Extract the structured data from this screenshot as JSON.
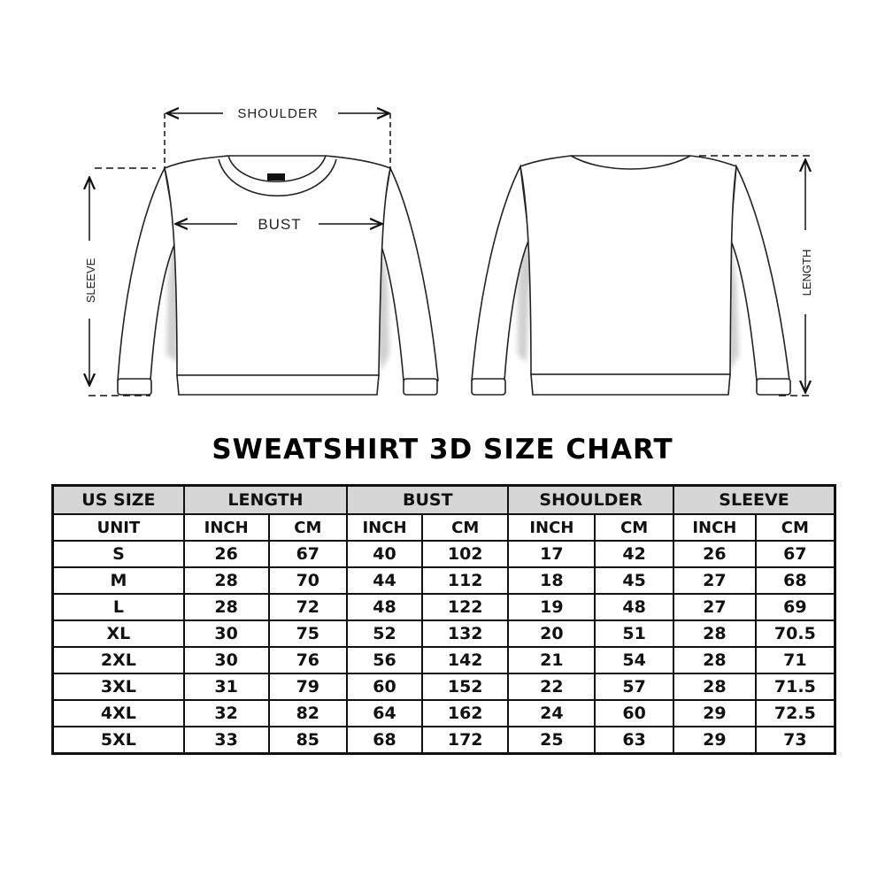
{
  "diagram": {
    "labels": {
      "shoulder": "SHOULDER",
      "bust": "BUST",
      "sleeve": "SLEEVE",
      "length": "LENGTH"
    },
    "views": [
      "front",
      "back"
    ]
  },
  "title": "SWEATSHIRT 3D SIZE CHART",
  "table": {
    "groups": [
      "US SIZE",
      "LENGTH",
      "BUST",
      "SHOULDER",
      "SLEEVE"
    ],
    "unit_label": "UNIT",
    "units": [
      "INCH",
      "CM",
      "INCH",
      "CM",
      "INCH",
      "CM",
      "INCH",
      "CM"
    ],
    "rows": [
      {
        "size": "S",
        "values": [
          "26",
          "67",
          "40",
          "102",
          "17",
          "42",
          "26",
          "67"
        ]
      },
      {
        "size": "M",
        "values": [
          "28",
          "70",
          "44",
          "112",
          "18",
          "45",
          "27",
          "68"
        ]
      },
      {
        "size": "L",
        "values": [
          "28",
          "72",
          "48",
          "122",
          "19",
          "48",
          "27",
          "69"
        ]
      },
      {
        "size": "XL",
        "values": [
          "30",
          "75",
          "52",
          "132",
          "20",
          "51",
          "28",
          "70.5"
        ]
      },
      {
        "size": "2XL",
        "values": [
          "30",
          "76",
          "56",
          "142",
          "21",
          "54",
          "28",
          "71"
        ]
      },
      {
        "size": "3XL",
        "values": [
          "31",
          "79",
          "60",
          "152",
          "22",
          "57",
          "28",
          "71.5"
        ]
      },
      {
        "size": "4XL",
        "values": [
          "32",
          "82",
          "64",
          "162",
          "24",
          "60",
          "29",
          "72.5"
        ]
      },
      {
        "size": "5XL",
        "values": [
          "33",
          "85",
          "68",
          "172",
          "25",
          "63",
          "29",
          "73"
        ]
      }
    ],
    "header_color": "#d6d6d6"
  }
}
